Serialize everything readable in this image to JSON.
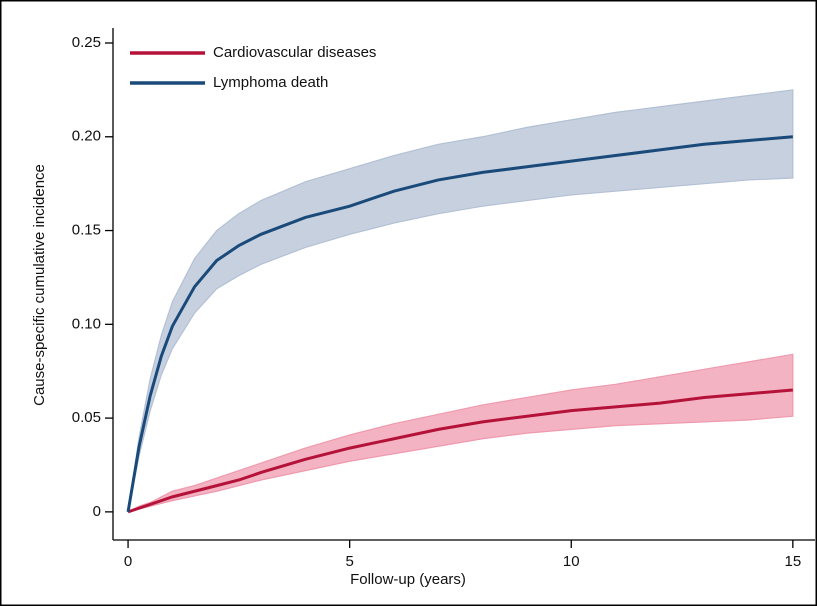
{
  "chart_data": {
    "type": "line",
    "xlabel": "Follow-up (years)",
    "ylabel": "Cause-specific cumulative incidence",
    "legend": "upper-left",
    "x": [
      0,
      0.25,
      0.5,
      0.75,
      1,
      1.5,
      2,
      2.5,
      3,
      4,
      5,
      6,
      7,
      8,
      9,
      10,
      11,
      12,
      13,
      14,
      15
    ],
    "series": [
      {
        "name": "Cardiovascular diseases",
        "color": "#b5123a",
        "band_color": "#ef9aae",
        "values": [
          0,
          0.002,
          0.004,
          0.006,
          0.008,
          0.011,
          0.014,
          0.017,
          0.021,
          0.028,
          0.034,
          0.039,
          0.044,
          0.048,
          0.051,
          0.054,
          0.056,
          0.058,
          0.061,
          0.063,
          0.065
        ],
        "lower": [
          0,
          0.0015,
          0.003,
          0.0045,
          0.006,
          0.0085,
          0.011,
          0.014,
          0.017,
          0.022,
          0.027,
          0.031,
          0.035,
          0.039,
          0.042,
          0.044,
          0.046,
          0.047,
          0.048,
          0.049,
          0.051
        ],
        "upper": [
          0,
          0.003,
          0.005,
          0.008,
          0.011,
          0.014,
          0.018,
          0.022,
          0.026,
          0.034,
          0.041,
          0.047,
          0.052,
          0.057,
          0.061,
          0.065,
          0.068,
          0.072,
          0.076,
          0.08,
          0.084
        ]
      },
      {
        "name": "Lymphoma death",
        "color": "#1a4a7a",
        "band_color": "#b3c0d4",
        "values": [
          0,
          0.035,
          0.062,
          0.083,
          0.099,
          0.12,
          0.134,
          0.142,
          0.148,
          0.157,
          0.163,
          0.171,
          0.177,
          0.181,
          0.184,
          0.187,
          0.19,
          0.193,
          0.196,
          0.198,
          0.2
        ],
        "lower": [
          0,
          0.03,
          0.054,
          0.073,
          0.087,
          0.106,
          0.119,
          0.126,
          0.132,
          0.141,
          0.148,
          0.154,
          0.159,
          0.163,
          0.166,
          0.169,
          0.171,
          0.173,
          0.175,
          0.177,
          0.178
        ],
        "upper": [
          0,
          0.04,
          0.071,
          0.094,
          0.112,
          0.135,
          0.15,
          0.159,
          0.166,
          0.176,
          0.183,
          0.19,
          0.196,
          0.2,
          0.205,
          0.209,
          0.213,
          0.216,
          0.219,
          0.222,
          0.225
        ]
      }
    ],
    "xlim": [
      -0.34,
      15.5
    ],
    "ylim": [
      -0.015,
      0.258
    ],
    "xticks": [
      0,
      5,
      10,
      15
    ],
    "yticks": [
      0,
      0.05,
      {
        "value": 0.1,
        "label": "0.10"
      },
      0.15,
      {
        "value": 0.2,
        "label": "0.20"
      },
      0.25
    ]
  }
}
